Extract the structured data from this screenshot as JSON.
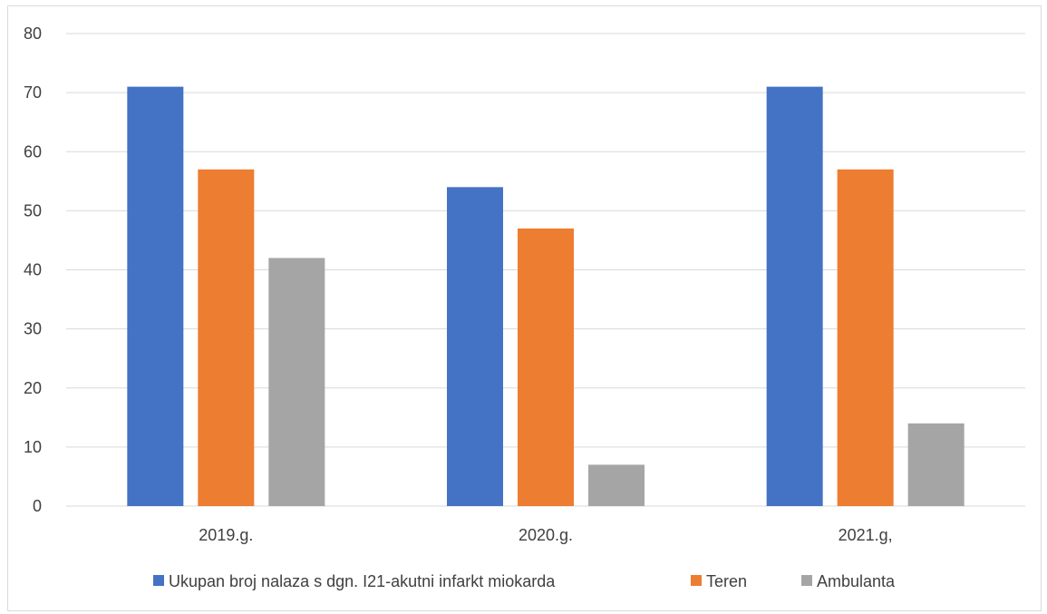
{
  "chart_data": {
    "type": "bar",
    "categories": [
      "2019.g.",
      "2020.g.",
      "2021.g,"
    ],
    "series": [
      {
        "name": "Ukupan broj nalaza s dgn. I21-akutni infarkt miokarda",
        "values": [
          71,
          54,
          71
        ],
        "color": "#4472c4"
      },
      {
        "name": "Teren",
        "values": [
          57,
          47,
          57
        ],
        "color": "#ed7d31"
      },
      {
        "name": "Ambulanta",
        "values": [
          42,
          7,
          14
        ],
        "color": "#a5a5a5"
      }
    ],
    "title": "",
    "xlabel": "",
    "ylabel": "",
    "ylim": [
      0,
      80
    ],
    "yticks": [
      0,
      10,
      20,
      30,
      40,
      50,
      60,
      70,
      80
    ],
    "grid": true,
    "legend_position": "bottom",
    "grid_color": "#d9d9d9"
  }
}
